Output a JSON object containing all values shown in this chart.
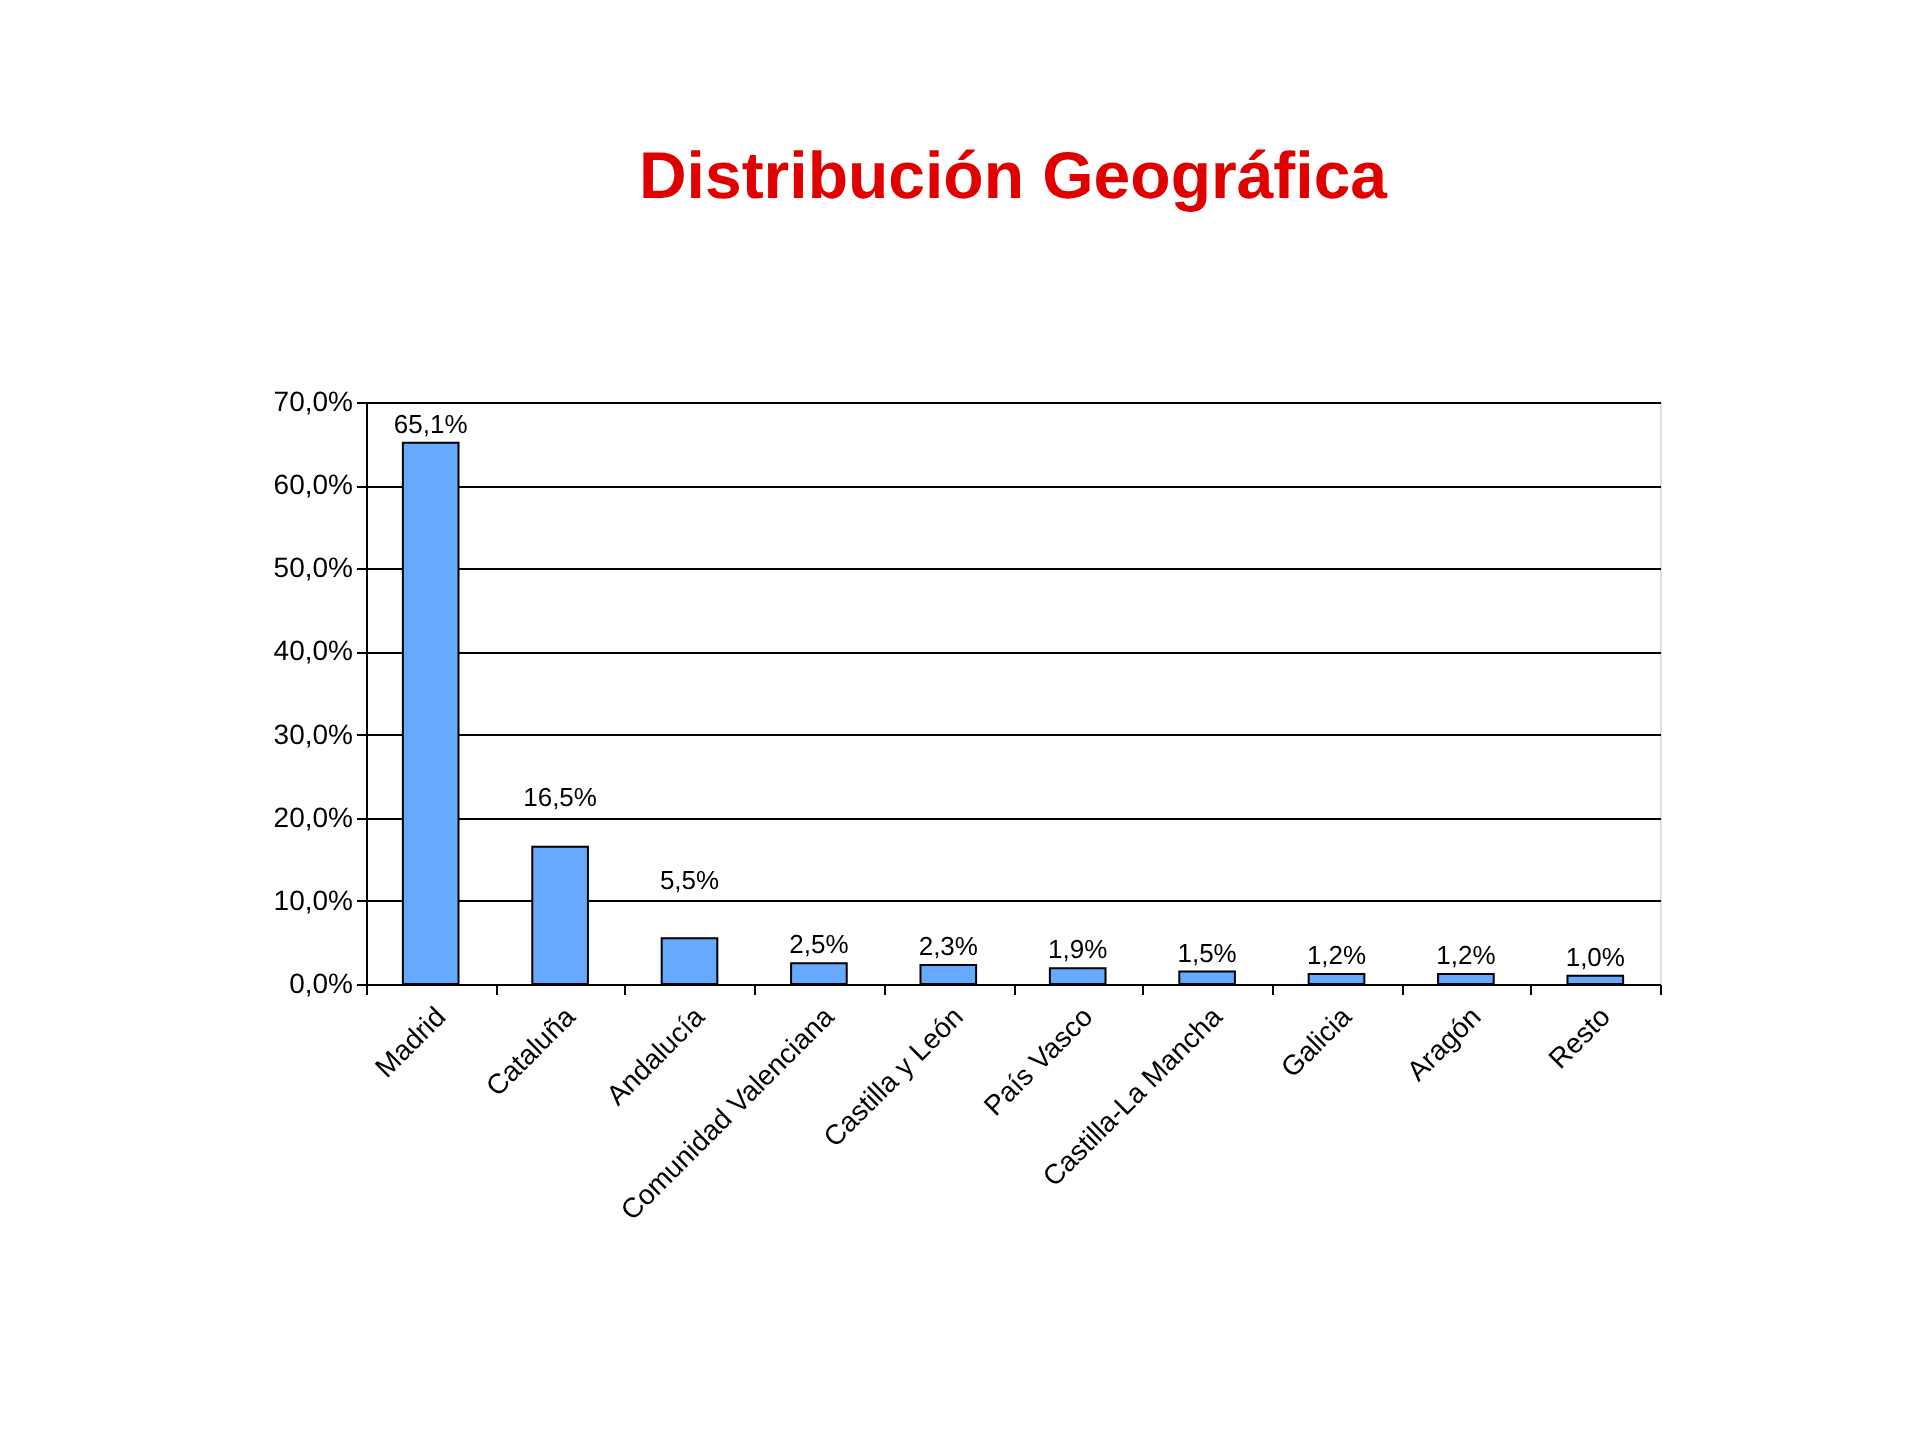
{
  "chart_data": {
    "type": "bar",
    "title": "Distribución Geográfica",
    "categories": [
      "Madrid",
      "Cataluña",
      "Andalucía",
      "Comunidad Valenciana",
      "Castilla y León",
      "País Vasco",
      "Castilla-La Mancha",
      "Galicia",
      "Aragón",
      "Resto"
    ],
    "values": [
      65.1,
      16.5,
      5.5,
      2.5,
      2.3,
      1.9,
      1.5,
      1.2,
      1.2,
      1.0
    ],
    "value_labels": [
      "65,1%",
      "16,5%",
      "5,5%",
      "2,5%",
      "2,3%",
      "1,9%",
      "1,5%",
      "1,2%",
      "1,2%",
      "1,0%"
    ],
    "color": "#66aaff",
    "ylim": [
      0,
      70
    ],
    "yticks": [
      {
        "value": 0,
        "label": "0,0%"
      },
      {
        "value": 10,
        "label": "10,0%"
      },
      {
        "value": 20,
        "label": "20,0%"
      },
      {
        "value": 30,
        "label": "30,0%"
      },
      {
        "value": 40,
        "label": "40,0%"
      },
      {
        "value": 50,
        "label": "50,0%"
      },
      {
        "value": 60,
        "label": "60,0%"
      },
      {
        "value": 70,
        "label": "70,0%"
      }
    ],
    "grid": "y"
  }
}
